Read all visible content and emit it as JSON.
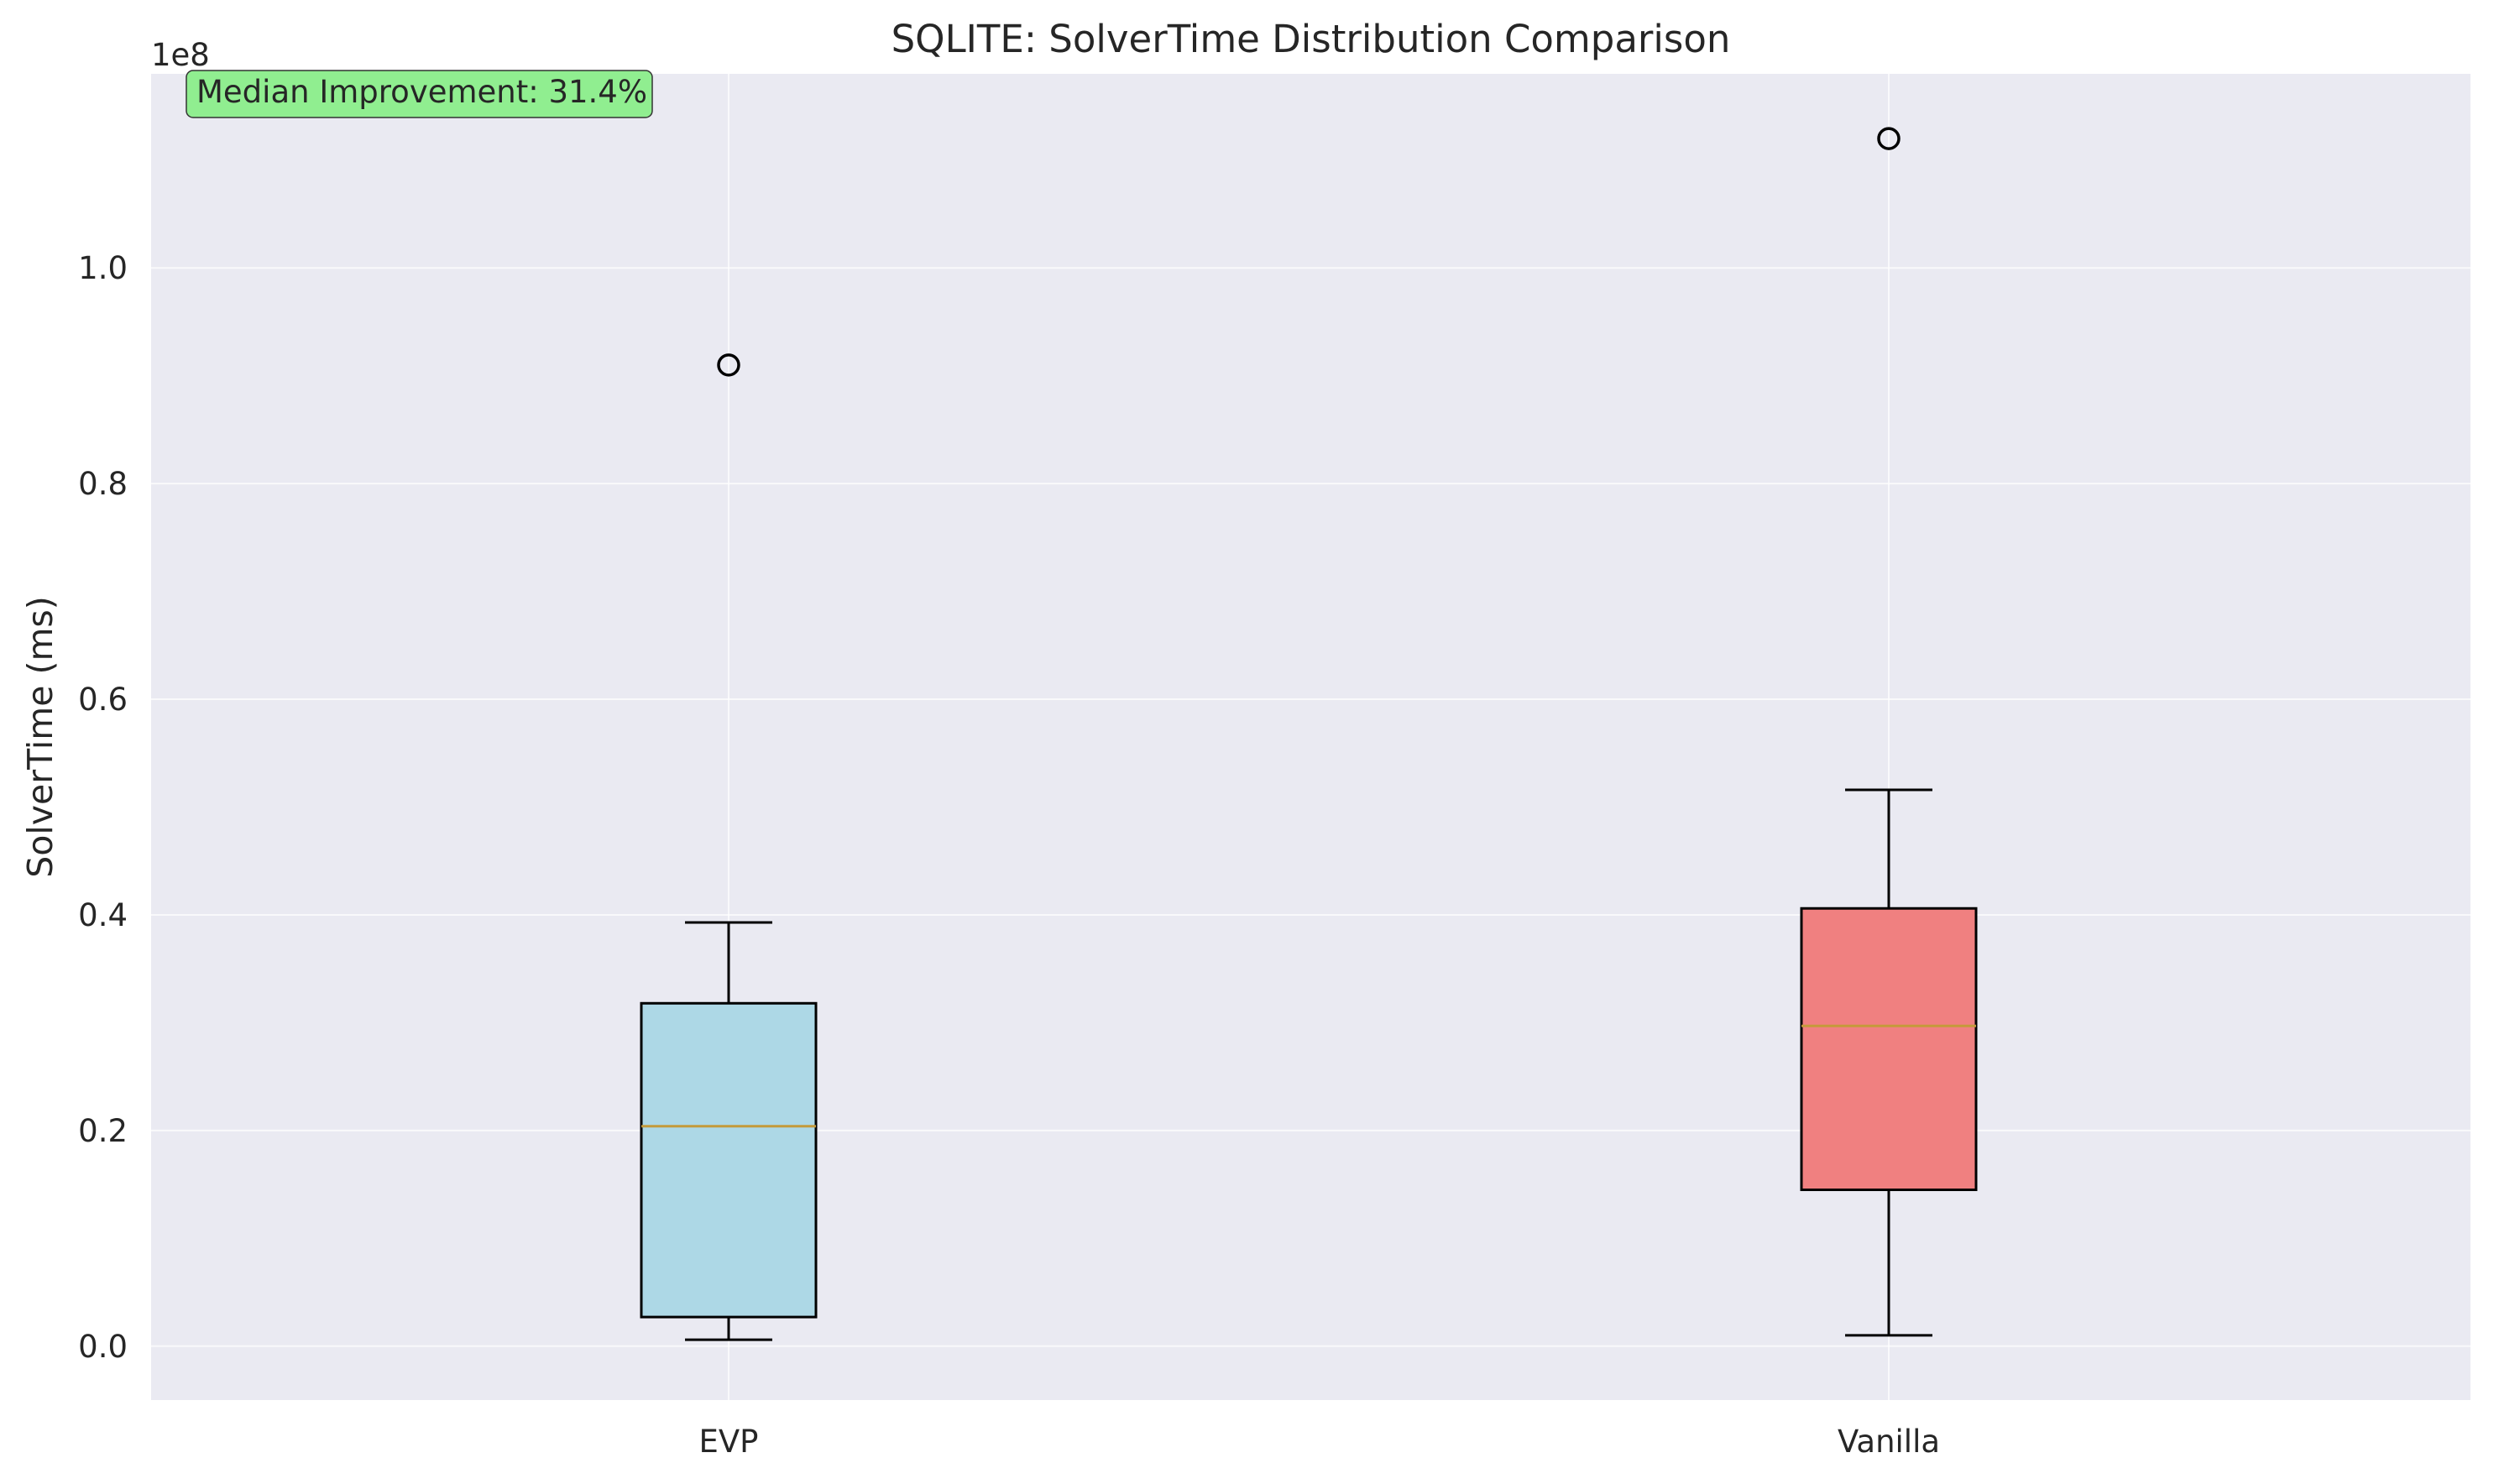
{
  "chart_data": {
    "type": "box",
    "title": "SQLITE: SolverTime Distribution Comparison",
    "xlabel": "",
    "ylabel": "SolverTime (ms)",
    "y_offset_label": "1e8",
    "categories": [
      "EVP",
      "Vanilla"
    ],
    "ylim": [
      -0.05,
      1.18
    ],
    "yticks": [
      0.0,
      0.2,
      0.4,
      0.6,
      0.8,
      1.0
    ],
    "ytick_labels": [
      "0.0",
      "0.2",
      "0.4",
      "0.6",
      "0.8",
      "1.0"
    ],
    "grid": true,
    "boxes": [
      {
        "label": "EVP",
        "color": "#add8e6",
        "whisker_low": 0.006,
        "q1": 0.027,
        "median": 0.204,
        "q3": 0.318,
        "whisker_high": 0.393,
        "outliers": [
          0.91
        ]
      },
      {
        "label": "Vanilla",
        "color": "#f08080",
        "whisker_low": 0.01,
        "q1": 0.145,
        "median": 0.297,
        "q3": 0.406,
        "whisker_high": 0.516,
        "outliers": [
          1.12
        ]
      }
    ],
    "median_color": "#c49a3a",
    "annotation": {
      "text": "Median Improvement: 31.4%",
      "background": "#90ee90",
      "position": "top-left"
    },
    "background": "#eaeaf2"
  }
}
